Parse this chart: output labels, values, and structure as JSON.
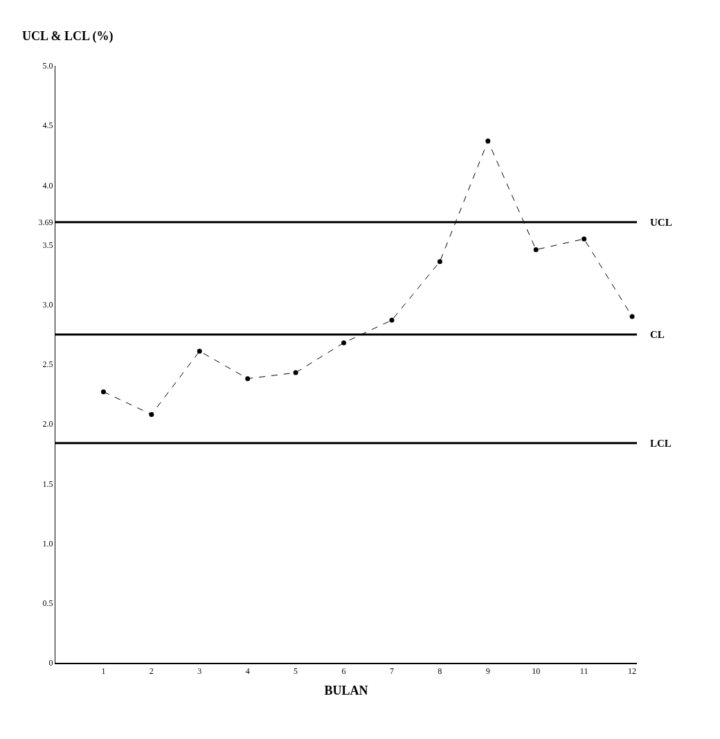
{
  "chart_data": {
    "type": "line",
    "ylabel": "UCL & LCL (%)",
    "xlabel": "BULAN",
    "x": [
      1,
      2,
      3,
      4,
      5,
      6,
      7,
      8,
      9,
      10,
      11,
      12
    ],
    "series": [
      {
        "color": "#000000",
        "values": [
          2.27,
          2.08,
          2.61,
          2.38,
          2.43,
          2.68,
          2.87,
          3.36,
          4.37,
          3.46,
          3.55,
          2.9
        ]
      }
    ],
    "xlim": [
      0,
      12.1
    ],
    "xticks": [
      1,
      2,
      3,
      4,
      5,
      6,
      7,
      8,
      9,
      10,
      11,
      12
    ],
    "ylim": [
      0,
      5
    ],
    "yticks": [
      0,
      0.5,
      {
        "value": 1,
        "label": "1.0"
      },
      1.5,
      {
        "value": 2,
        "label": "2.0"
      },
      2.5,
      {
        "value": 3,
        "label": "3.0"
      },
      3.5,
      3.69,
      {
        "value": 4,
        "label": "4.0"
      },
      4.5,
      {
        "value": 5,
        "label": "5.0"
      }
    ],
    "ref_lines": [
      {
        "axis": "y",
        "value": 3.69,
        "label": "UCL",
        "color": "#000000"
      },
      {
        "axis": "y",
        "value": 2.75,
        "label": "CL",
        "color": "#000000"
      },
      {
        "axis": "y",
        "value": 1.84,
        "label": "LCL",
        "color": "#000000"
      }
    ],
    "marker": "circle",
    "line_style": "dashed"
  }
}
